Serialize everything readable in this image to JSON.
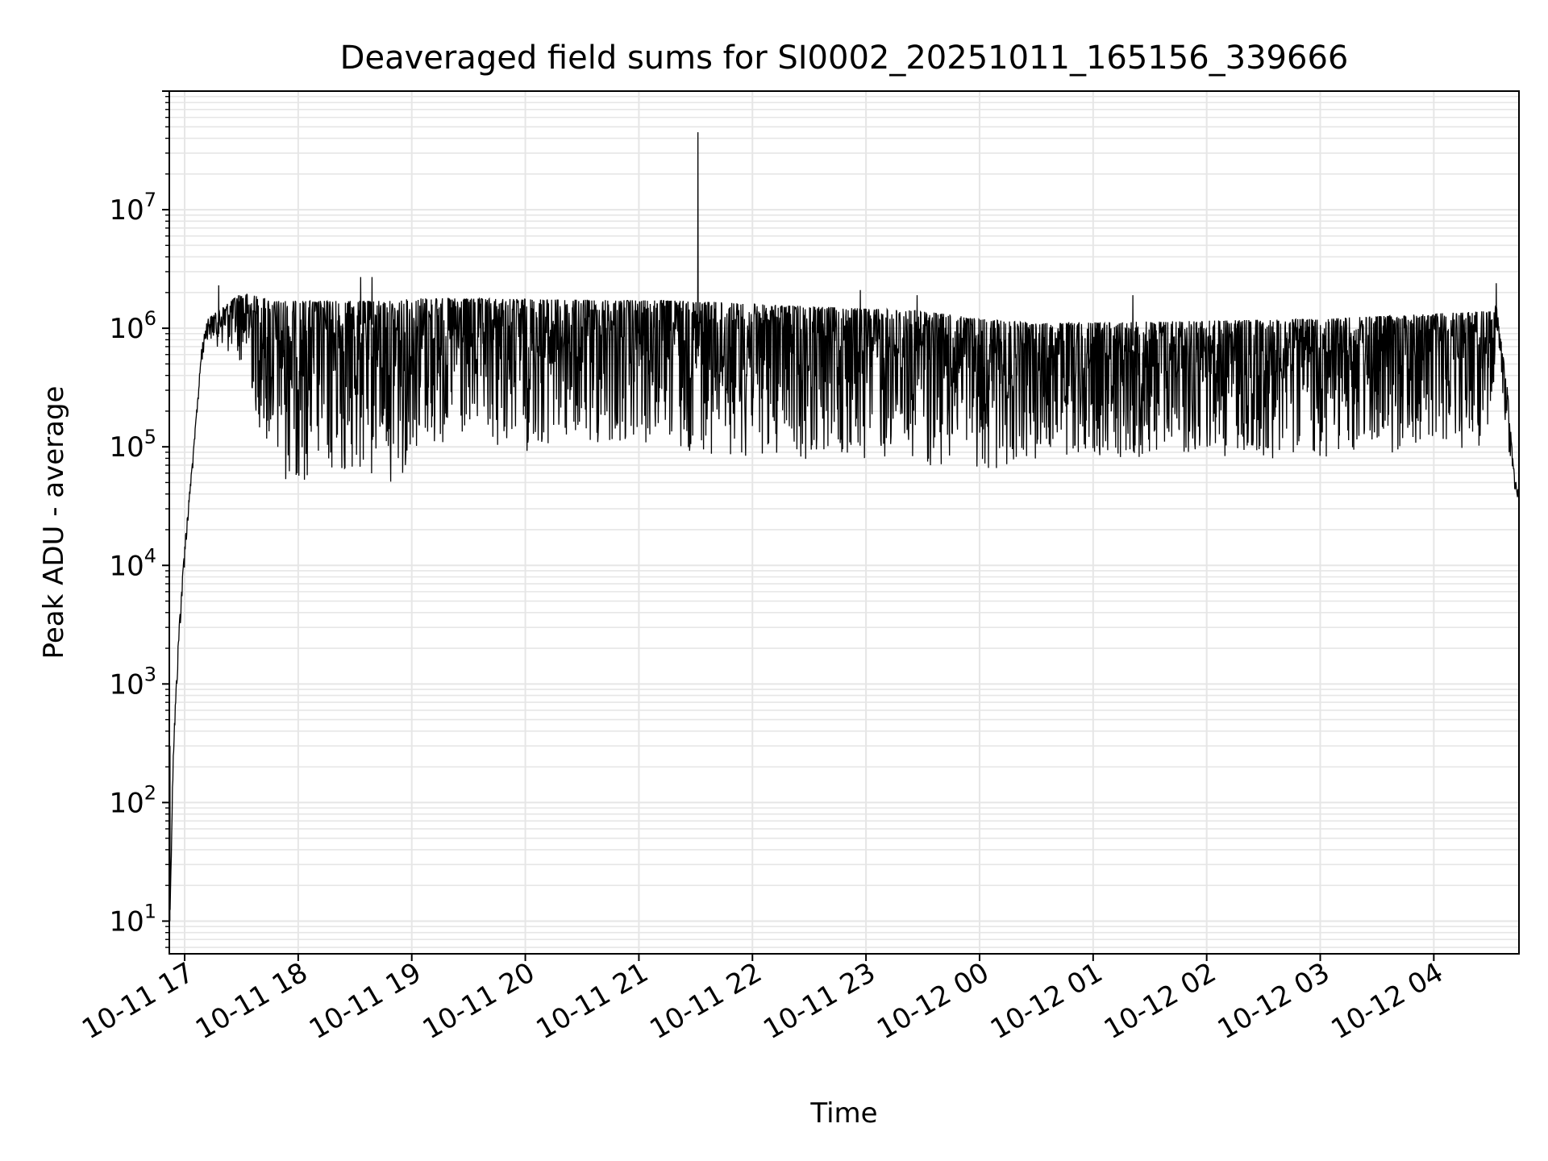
{
  "chart_data": {
    "type": "line",
    "title": "Deaveraged field sums for SI0002_20251011_165156_339666",
    "xlabel": "Time",
    "ylabel": "Peak ADU - average",
    "x_units": "hours since 10-11 00:00",
    "xlim": [
      16.865,
      28.75
    ],
    "ylim": [
      5.3,
      100000000
    ],
    "yscale": "log",
    "grid": true,
    "line_color": "#000000",
    "grid_color": "#e6e6e6",
    "x_ticks": [
      {
        "value": 17,
        "label": "10-11 17"
      },
      {
        "value": 18,
        "label": "10-11 18"
      },
      {
        "value": 19,
        "label": "10-11 19"
      },
      {
        "value": 20,
        "label": "10-11 20"
      },
      {
        "value": 21,
        "label": "10-11 21"
      },
      {
        "value": 22,
        "label": "10-11 22"
      },
      {
        "value": 23,
        "label": "10-11 23"
      },
      {
        "value": 24,
        "label": "10-12 00"
      },
      {
        "value": 25,
        "label": "10-12 01"
      },
      {
        "value": 26,
        "label": "10-12 02"
      },
      {
        "value": 27,
        "label": "10-12 03"
      },
      {
        "value": 28,
        "label": "10-12 04"
      }
    ],
    "y_ticks": [
      {
        "value": 10,
        "base": "10",
        "exp": "1"
      },
      {
        "value": 100,
        "base": "10",
        "exp": "2"
      },
      {
        "value": 1000,
        "base": "10",
        "exp": "3"
      },
      {
        "value": 10000,
        "base": "10",
        "exp": "4"
      },
      {
        "value": 100000,
        "base": "10",
        "exp": "5"
      },
      {
        "value": 1000000,
        "base": "10",
        "exp": "6"
      },
      {
        "value": 10000000,
        "base": "10",
        "exp": "7"
      }
    ],
    "envelope_note": "[time, min value, max value]",
    "envelope": [
      [
        16.87,
        10,
        10
      ],
      [
        16.9,
        200,
        300
      ],
      [
        16.95,
        2000,
        3000
      ],
      [
        17.0,
        10000,
        15000
      ],
      [
        17.08,
        80000,
        100000
      ],
      [
        17.15,
        500000,
        700000
      ],
      [
        17.2,
        800000,
        1200000
      ],
      [
        17.5,
        500000,
        2000000
      ],
      [
        17.7,
        100000,
        1800000
      ],
      [
        17.8,
        50000,
        1700000
      ],
      [
        18.9,
        50000,
        1700000
      ],
      [
        19.0,
        90000,
        1800000
      ],
      [
        21.5,
        90000,
        1700000
      ],
      [
        22.0,
        80000,
        1600000
      ],
      [
        23.5,
        70000,
        1400000
      ],
      [
        24.0,
        60000,
        1200000
      ],
      [
        24.5,
        80000,
        1100000
      ],
      [
        27.0,
        80000,
        1200000
      ],
      [
        28.5,
        100000,
        1400000
      ],
      [
        28.55,
        800000,
        1600000
      ],
      [
        28.65,
        100000,
        300000
      ],
      [
        28.7,
        50000,
        70000
      ],
      [
        28.75,
        30000,
        40000
      ]
    ],
    "spikes": [
      [
        21.52,
        45000000
      ],
      [
        18.55,
        2700000
      ],
      [
        18.65,
        2700000
      ],
      [
        22.95,
        2100000
      ],
      [
        17.3,
        2300000
      ],
      [
        28.55,
        2400000
      ],
      [
        23.45,
        1900000
      ],
      [
        25.35,
        1900000
      ]
    ]
  }
}
